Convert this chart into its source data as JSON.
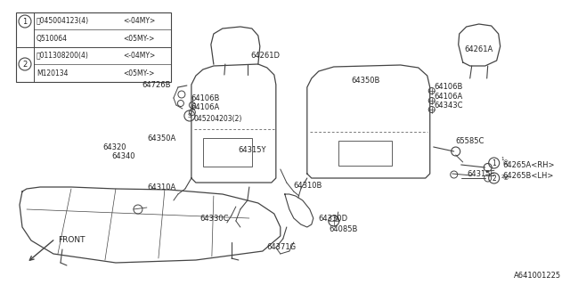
{
  "bg_color": "#ffffff",
  "line_color": "#444444",
  "text_color": "#222222",
  "fig_width": 6.4,
  "fig_height": 3.2,
  "diagram_id": "A641001225",
  "parts_table": {
    "row1_part1": "045004123(4)",
    "row1_range1": "<-04MY>",
    "row1_part2": "Q510064",
    "row1_range2": "<05MY->",
    "row2_part1": "011308200(4)",
    "row2_range1": "<-04MY>",
    "row2_part2": "M120134",
    "row2_range2": "<05MY->"
  }
}
